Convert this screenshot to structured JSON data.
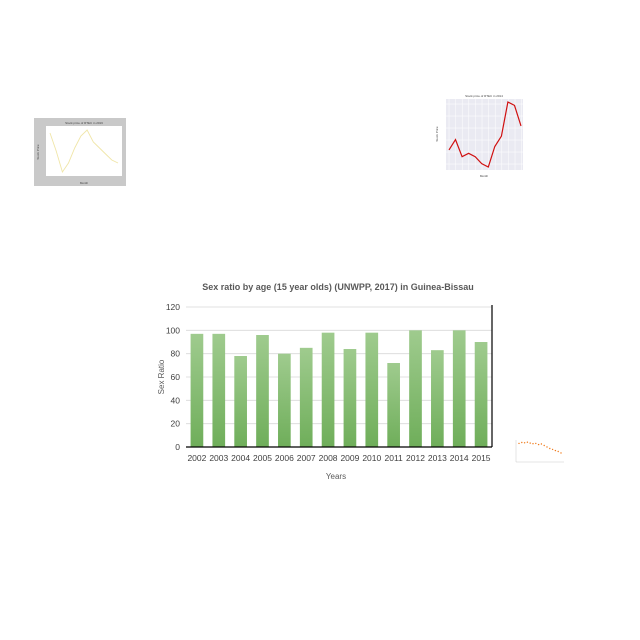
{
  "chart_data": [
    {
      "type": "bar",
      "title": "Sex ratio by age (15 year olds) (UNWPP, 2017) in Guinea-Bissau",
      "xlabel": "Years",
      "ylabel": "Sex Ratio",
      "categories": [
        "2002",
        "2003",
        "2004",
        "2005",
        "2006",
        "2007",
        "2008",
        "2009",
        "2010",
        "2011",
        "2012",
        "2013",
        "2014",
        "2015"
      ],
      "values": [
        97,
        97,
        78,
        96,
        80,
        85,
        98,
        84,
        98,
        72,
        100,
        83,
        100,
        90
      ],
      "ylim": [
        0,
        120
      ],
      "yticks": [
        0,
        20,
        40,
        60,
        80,
        100,
        120
      ],
      "grid": true,
      "colors": {
        "bar_top": "#9fcb8e",
        "bar_bottom": "#6fae5a",
        "grid": "#d9d9d9",
        "axis": "#000000"
      }
    },
    {
      "type": "line",
      "title": "Stock price of RTEC in 2016",
      "xlabel": "Month",
      "ylabel": "Stock Price",
      "categories": [
        "Jan",
        "Feb",
        "Mar",
        "Apr",
        "May",
        "Jun",
        "Jul",
        "Aug",
        "Sep",
        "Oct",
        "Nov",
        "Dec"
      ],
      "values": [
        10.9,
        10.3,
        9.6,
        9.9,
        10.4,
        10.8,
        11.0,
        10.6,
        10.4,
        10.2,
        10.0,
        9.9
      ],
      "grid": false,
      "colors": {
        "line": "#f0e6a8",
        "frame": "#c8c8c8"
      }
    },
    {
      "type": "line",
      "title": "Stock price of RTEC in 2014",
      "xlabel": "Month",
      "ylabel": "Stock Price",
      "categories": [
        "Jan",
        "Feb",
        "Mar",
        "Apr",
        "May",
        "Jun",
        "Jul",
        "Aug",
        "Sep",
        "Oct",
        "Nov",
        "Dec"
      ],
      "values": [
        10.3,
        10.6,
        10.1,
        10.2,
        10.1,
        9.9,
        9.8,
        10.4,
        10.7,
        11.7,
        11.6,
        11.0
      ],
      "grid": true,
      "colors": {
        "line": "#d01010",
        "background": "#eaeaf2"
      }
    },
    {
      "type": "scatter",
      "values": [
        0.62,
        0.65,
        0.64,
        0.66,
        0.63,
        0.61,
        0.62,
        0.58,
        0.6,
        0.55,
        0.5,
        0.45,
        0.42,
        0.38,
        0.35,
        0.3
      ],
      "grid": false,
      "colors": {
        "points": "#f07a1a"
      }
    }
  ]
}
